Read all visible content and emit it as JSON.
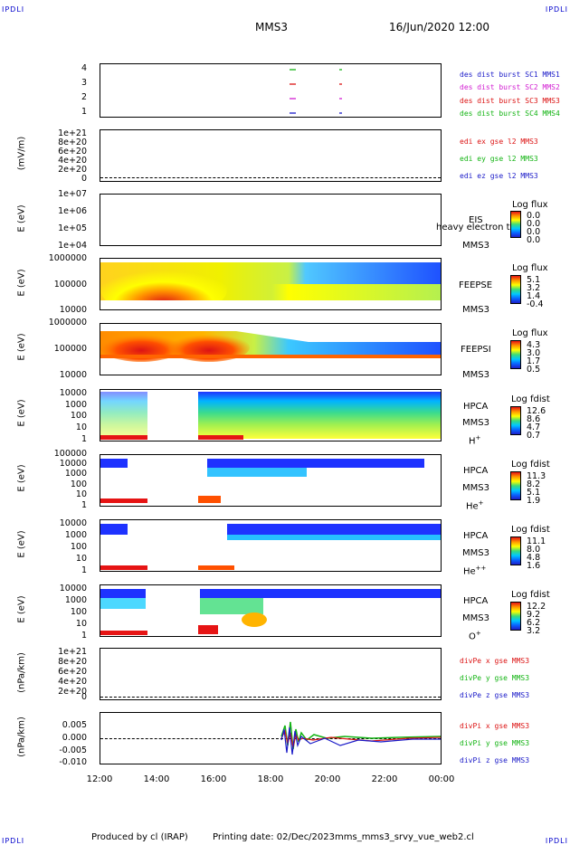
{
  "corner_label": "IPDLI",
  "header": {
    "spacecraft": "MMS3",
    "date": "16/Jun/2020 12:00"
  },
  "footer": {
    "produced": "Produced by cl (IRAP)",
    "printing": "Printing date: 02/Dec/2023",
    "file": "mms_mms3_srvy_vue_web2.cl"
  },
  "panels": {
    "burst": {
      "yticks": [
        "4",
        "3",
        "2",
        "1"
      ],
      "legend": [
        {
          "text": "des dist burst SC1 MMS1",
          "color": "#1a1ac8"
        },
        {
          "text": "des dist burst SC2 MMS2",
          "color": "#d21ed2"
        },
        {
          "text": "des dist burst SC3 MMS3",
          "color": "#dc1414"
        },
        {
          "text": "des dist burst SC4 MMS4",
          "color": "#14b414"
        }
      ]
    },
    "edi": {
      "ylabel": "(mV/m)",
      "yticks": [
        "1e+21",
        "8e+20",
        "6e+20",
        "4e+20",
        "2e+20",
        "0"
      ],
      "legend": [
        {
          "text": "edi ex gse l2 MMS3",
          "color": "#dc1414"
        },
        {
          "text": "edi ey gse l2 MMS3",
          "color": "#14b414"
        },
        {
          "text": "edi ez gse l2 MMS3",
          "color": "#1a1ac8"
        }
      ]
    },
    "eis": {
      "ylabel": "E (eV)",
      "yticks": [
        "1e+07",
        "1e+06",
        "1e+05",
        "1e+04"
      ],
      "instrument": "EIS",
      "overlay_text": "heavy electron to",
      "sc": "MMS3",
      "cbar_title": "Log flux",
      "cbar_values": [
        "0.0",
        "0.0",
        "0.0",
        "0.0"
      ]
    },
    "feepse": {
      "ylabel": "E (eV)",
      "yticks": [
        "1000000",
        "100000",
        "10000"
      ],
      "instrument": "FEEPSE",
      "sc": "MMS3",
      "cbar_title": "Log flux",
      "cbar_values": [
        "5.1",
        "3.2",
        "1.4",
        "-0.4"
      ]
    },
    "feepsi": {
      "ylabel": "E (eV)",
      "yticks": [
        "1000000",
        "100000",
        "10000"
      ],
      "instrument": "FEEPSI",
      "sc": "MMS3",
      "cbar_title": "Log flux",
      "cbar_values": [
        "4.3",
        "3.0",
        "1.7",
        "0.5"
      ]
    },
    "hpca_h": {
      "ylabel": "E (eV)",
      "yticks": [
        "10000",
        "1000",
        "100",
        "10",
        "1"
      ],
      "instrument": "HPCA",
      "sc": "MMS3",
      "species": "H",
      "charge": "+",
      "cbar_title": "Log fdist",
      "cbar_values": [
        "12.6",
        "8.6",
        "4.7",
        "0.7"
      ]
    },
    "hpca_he": {
      "ylabel": "E (eV)",
      "yticks": [
        "100000",
        "10000",
        "1000",
        "100",
        "10",
        "1"
      ],
      "instrument": "HPCA",
      "sc": "MMS3",
      "species": "He",
      "charge": "+",
      "cbar_title": "Log fdist",
      "cbar_values": [
        "11.3",
        "8.2",
        "5.1",
        "1.9"
      ]
    },
    "hpca_hepp": {
      "ylabel": "E (eV)",
      "yticks": [
        "10000",
        "1000",
        "100",
        "10",
        "1"
      ],
      "instrument": "HPCA",
      "sc": "MMS3",
      "species": "He",
      "charge": "++",
      "cbar_title": "Log fdist",
      "cbar_values": [
        "11.1",
        "8.0",
        "4.8",
        "1.6"
      ]
    },
    "hpca_o": {
      "ylabel": "E (eV)",
      "yticks": [
        "10000",
        "1000",
        "100",
        "10",
        "1"
      ],
      "instrument": "HPCA",
      "sc": "MMS3",
      "species": "O",
      "charge": "+",
      "cbar_title": "Log fdist",
      "cbar_values": [
        "12.2",
        "9.2",
        "6.2",
        "3.2"
      ]
    },
    "divpe": {
      "ylabel": "(nPa/km)",
      "yticks": [
        "1e+21",
        "8e+20",
        "6e+20",
        "4e+20",
        "2e+20",
        "0"
      ],
      "legend": [
        {
          "text": "divPe x gse MMS3",
          "color": "#dc1414"
        },
        {
          "text": "divPe y gse MMS3",
          "color": "#14b414"
        },
        {
          "text": "divPe z gse MMS3",
          "color": "#1a1ac8"
        }
      ]
    },
    "divpi": {
      "ylabel": "(nPa/km)",
      "yticks": [
        "0.005",
        "0.000",
        "-0.005",
        "-0.010"
      ],
      "legend": [
        {
          "text": "divPi x gse MMS3",
          "color": "#dc1414"
        },
        {
          "text": "divPi y gse MMS3",
          "color": "#14b414"
        },
        {
          "text": "divPi z gse MMS3",
          "color": "#1a1ac8"
        }
      ]
    }
  },
  "chart_data": {
    "type": "heatmap",
    "x_ticks": [
      "12:00",
      "14:00",
      "16:00",
      "18:00",
      "20:00",
      "22:00",
      "00:00"
    ],
    "burst_intervals": [
      {
        "sc": 1,
        "start": "18:45",
        "end": "18:55"
      },
      {
        "sc": 1,
        "start": "20:30",
        "end": "20:33"
      },
      {
        "sc": 2,
        "start": "18:45",
        "end": "18:55"
      },
      {
        "sc": 2,
        "start": "20:30",
        "end": "20:33"
      },
      {
        "sc": 3,
        "start": "18:45",
        "end": "18:55"
      },
      {
        "sc": 3,
        "start": "20:30",
        "end": "20:33"
      },
      {
        "sc": 4,
        "start": "18:45",
        "end": "18:55"
      },
      {
        "sc": 4,
        "start": "20:30",
        "end": "20:33"
      }
    ],
    "hpca_data_gaps": [
      {
        "start": "13:40",
        "end": "15:30"
      }
    ],
    "divpi_ylim": [
      -0.012,
      0.008
    ]
  }
}
